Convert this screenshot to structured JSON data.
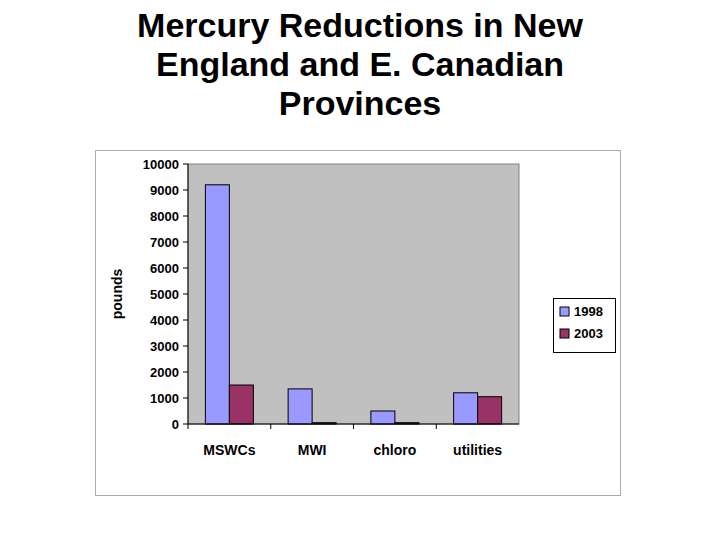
{
  "chart_data": {
    "type": "bar",
    "title": "Mercury Reductions in New England and E. Canadian Provinces",
    "y_label": "pounds",
    "categories": [
      "MSWCs",
      "MWI",
      "chloro",
      "utilities"
    ],
    "series": [
      {
        "name": "1998",
        "color": "#9999ff",
        "values": [
          9200,
          1350,
          500,
          1200
        ]
      },
      {
        "name": "2003",
        "color": "#993366",
        "values": [
          1500,
          50,
          50,
          1050
        ]
      }
    ],
    "ylim": [
      0,
      10000
    ],
    "yticks": [
      0,
      1000,
      2000,
      3000,
      4000,
      5000,
      6000,
      7000,
      8000,
      9000,
      10000
    ],
    "grid": false,
    "legend": "right"
  }
}
